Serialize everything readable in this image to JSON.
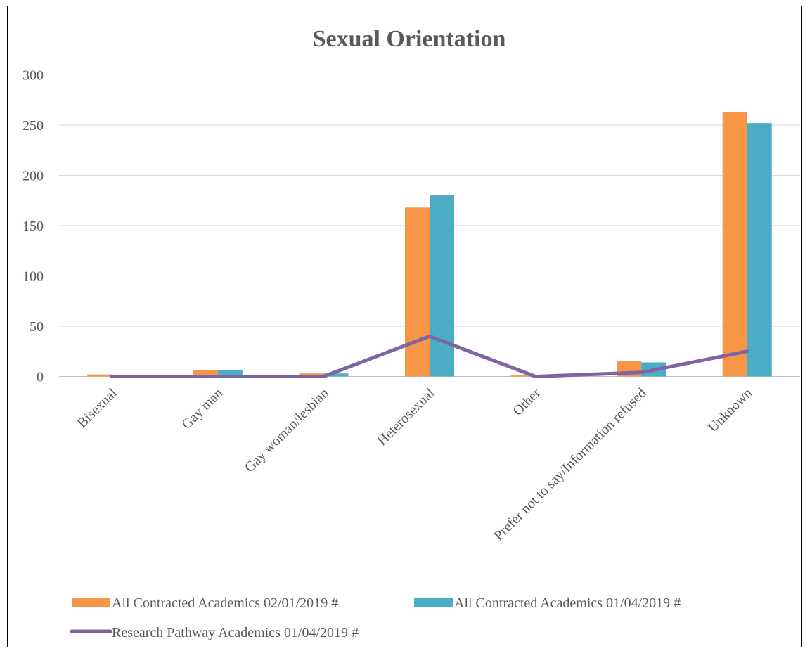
{
  "chart_data": {
    "type": "bar",
    "title": "Sexual Orientation",
    "xlabel": "",
    "ylabel": "",
    "categories": [
      "Bisexual",
      "Gay man",
      "Gay woman/lesbian",
      "Heterosexual",
      "Other",
      "Prefer not to say/Information refused",
      "Unknown"
    ],
    "ylim": [
      0,
      300
    ],
    "yticks": [
      "0",
      "50",
      "100",
      "150",
      "200",
      "250",
      "300"
    ],
    "grid": true,
    "legend_position": "bottom",
    "series": [
      {
        "name": "All Contracted Academics 02/01/2019 #",
        "kind": "bar",
        "color": "#F79646",
        "values": [
          2,
          6,
          3,
          168,
          1,
          15,
          263
        ]
      },
      {
        "name": "All Contracted Academics 01/04/2019 #",
        "kind": "bar",
        "color": "#4BACC6",
        "values": [
          0,
          6,
          3,
          180,
          0,
          14,
          252
        ]
      },
      {
        "name": "Research Pathway Academics 01/04/2019 #",
        "kind": "line",
        "color": "#8064A2",
        "values": [
          0,
          0,
          0,
          40,
          0,
          4,
          25
        ]
      }
    ]
  }
}
